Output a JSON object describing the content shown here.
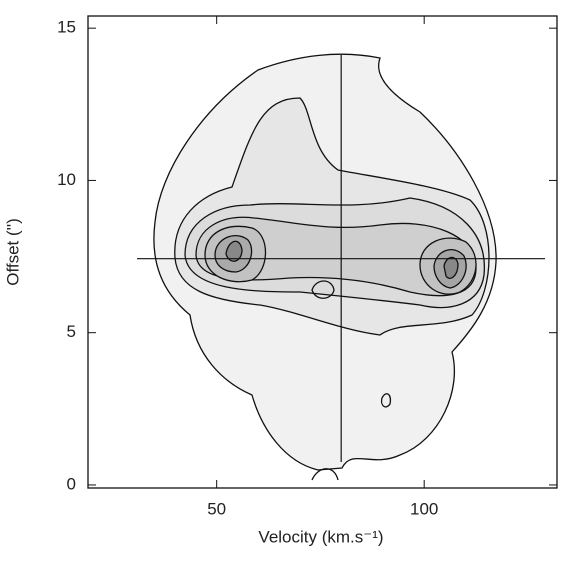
{
  "chart_data": {
    "type": "contour",
    "xlabel": "Velocity (km.s⁻¹)",
    "ylabel": "Offset ('')",
    "xlim": [
      19,
      132
    ],
    "ylim": [
      -0.1,
      15.4
    ],
    "xticks": [
      50,
      100
    ],
    "yticks": [
      0,
      5,
      10,
      15
    ],
    "crosshair": {
      "x": 80,
      "y": 7.43
    }
  }
}
